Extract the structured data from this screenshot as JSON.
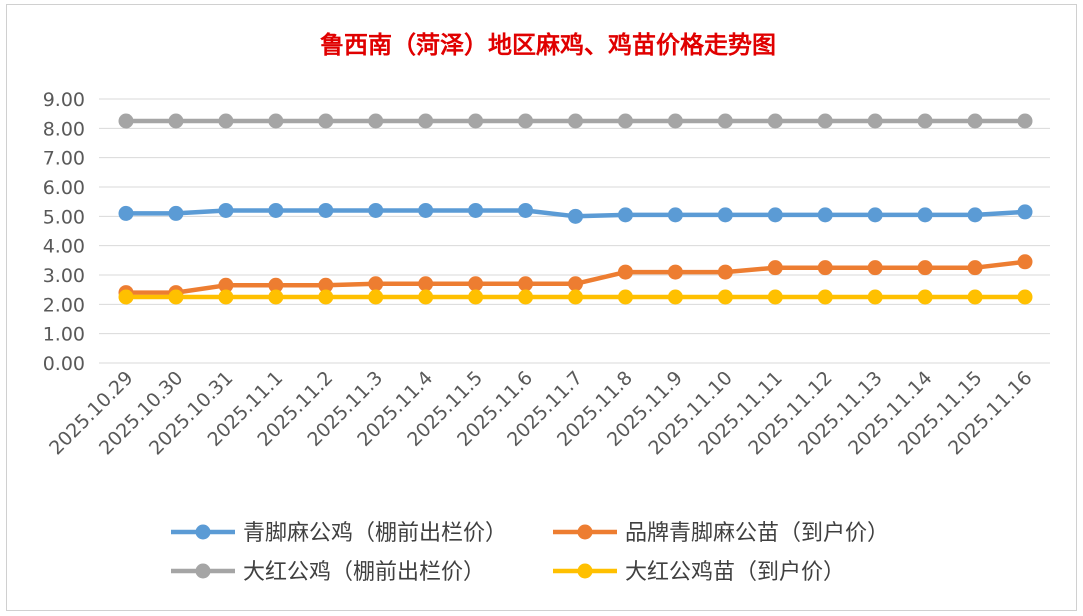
{
  "chart_data": {
    "type": "line",
    "title": "鲁西南（菏泽）地区麻鸡、鸡苗价格走势图",
    "xlabel": "",
    "ylabel": "",
    "ylim": [
      0,
      9
    ],
    "yticks": [
      "9.00",
      "8.00",
      "7.00",
      "6.00",
      "5.00",
      "4.00",
      "3.00",
      "2.00",
      "1.00",
      "0.00"
    ],
    "grid": true,
    "legend_position": "bottom",
    "categories": [
      "2025.10.29",
      "2025.10.30",
      "2025.10.31",
      "2025.11.1",
      "2025.11.2",
      "2025.11.3",
      "2025.11.4",
      "2025.11.5",
      "2025.11.6",
      "2025.11.7",
      "2025.11.8",
      "2025.11.9",
      "2025.11.10",
      "2025.11.11",
      "2025.11.12",
      "2025.11.13",
      "2025.11.14",
      "2025.11.15",
      "2025.11.16"
    ],
    "series": [
      {
        "name": "青脚麻公鸡（棚前出栏价）",
        "color": "#5b9bd5",
        "values": [
          5.1,
          5.1,
          5.2,
          5.2,
          5.2,
          5.2,
          5.2,
          5.2,
          5.2,
          5.0,
          5.05,
          5.05,
          5.05,
          5.05,
          5.05,
          5.05,
          5.05,
          5.05,
          5.15
        ]
      },
      {
        "name": "品牌青脚麻公苗（到户价）",
        "color": "#ed7d31",
        "values": [
          2.4,
          2.4,
          2.65,
          2.65,
          2.65,
          2.7,
          2.7,
          2.7,
          2.7,
          2.7,
          3.1,
          3.1,
          3.1,
          3.25,
          3.25,
          3.25,
          3.25,
          3.25,
          3.45
        ]
      },
      {
        "name": "大红公鸡（棚前出栏价）",
        "color": "#a5a5a5",
        "values": [
          8.25,
          8.25,
          8.25,
          8.25,
          8.25,
          8.25,
          8.25,
          8.25,
          8.25,
          8.25,
          8.25,
          8.25,
          8.25,
          8.25,
          8.25,
          8.25,
          8.25,
          8.25,
          8.25
        ]
      },
      {
        "name": "大红公鸡苗（到户价）",
        "color": "#ffc000",
        "values": [
          2.25,
          2.25,
          2.25,
          2.25,
          2.25,
          2.25,
          2.25,
          2.25,
          2.25,
          2.25,
          2.25,
          2.25,
          2.25,
          2.25,
          2.25,
          2.25,
          2.25,
          2.25,
          2.25
        ]
      }
    ]
  }
}
